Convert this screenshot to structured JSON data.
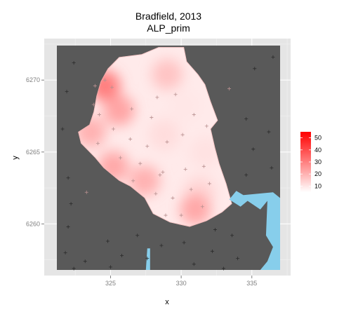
{
  "chart_data": {
    "type": "heatmap",
    "title": "Bradfield, 2013",
    "subtitle": "ALP_prim",
    "xlabel": "x",
    "ylabel": "y",
    "xlim": [
      321.2,
      337.0
    ],
    "ylim": [
      6256.8,
      6272.4
    ],
    "x_ticks": [
      325,
      330,
      335
    ],
    "y_ticks": [
      6260,
      6265,
      6270
    ],
    "grid": true,
    "legend": {
      "position": "right",
      "title": "",
      "ticks": [
        10,
        20,
        30,
        40,
        50
      ],
      "range": [
        5,
        55
      ],
      "low_color": "#ffffff",
      "high_color": "#ff0000"
    },
    "background_color": "#595959",
    "water_color": "#87ceeb",
    "electorate_outline": [
      [
        324.8,
        6270.8
      ],
      [
        325.6,
        6271.6
      ],
      [
        327.2,
        6271.8
      ],
      [
        328.4,
        6272.3
      ],
      [
        330.2,
        6272.3
      ],
      [
        330.4,
        6271.3
      ],
      [
        331.2,
        6270.4
      ],
      [
        331.7,
        6269.7
      ],
      [
        332.1,
        6268.5
      ],
      [
        332.6,
        6267.2
      ],
      [
        332.1,
        6266.6
      ],
      [
        332.4,
        6265.3
      ],
      [
        332.7,
        6264.2
      ],
      [
        333.2,
        6262.8
      ],
      [
        333.6,
        6261.4
      ],
      [
        332.9,
        6260.8
      ],
      [
        331.8,
        6260.2
      ],
      [
        330.6,
        6259.8
      ],
      [
        329.2,
        6260.1
      ],
      [
        328.0,
        6260.7
      ],
      [
        327.4,
        6261.8
      ],
      [
        326.4,
        6262.6
      ],
      [
        325.6,
        6263.0
      ],
      [
        324.5,
        6263.9
      ],
      [
        323.9,
        6264.6
      ],
      [
        322.9,
        6265.6
      ],
      [
        322.7,
        6266.4
      ],
      [
        323.5,
        6266.9
      ],
      [
        323.8,
        6267.8
      ],
      [
        324.0,
        6268.9
      ],
      [
        324.3,
        6269.9
      ]
    ],
    "peaks": [
      {
        "x": 324.6,
        "y": 6269.6,
        "value": 34
      },
      {
        "x": 325.6,
        "y": 6267.9,
        "value": 25
      },
      {
        "x": 323.6,
        "y": 6266.4,
        "value": 22
      },
      {
        "x": 330.2,
        "y": 6268.2,
        "value": 10
      },
      {
        "x": 328.8,
        "y": 6266.2,
        "value": 12
      },
      {
        "x": 331.3,
        "y": 6262.2,
        "value": 14
      },
      {
        "x": 327.4,
        "y": 6263.0,
        "value": 22
      },
      {
        "x": 325.2,
        "y": 6264.0,
        "value": 24
      },
      {
        "x": 329.0,
        "y": 6270.4,
        "value": 18
      },
      {
        "x": 331.7,
        "y": 6265.0,
        "value": 11
      },
      {
        "x": 331.0,
        "y": 6261.0,
        "value": 24
      }
    ],
    "water_regions": [
      [
        [
          333.4,
          6261.7
        ],
        [
          334.2,
          6261.2
        ],
        [
          334.7,
          6261.6
        ],
        [
          335.6,
          6261.0
        ],
        [
          336.1,
          6261.6
        ],
        [
          336.0,
          6259.2
        ],
        [
          336.5,
          6258.4
        ],
        [
          336.1,
          6257.4
        ],
        [
          335.6,
          6256.8
        ],
        [
          337.0,
          6256.8
        ],
        [
          337.0,
          6261.8
        ],
        [
          336.5,
          6262.2
        ],
        [
          334.4,
          6262.0
        ],
        [
          333.9,
          6262.3
        ]
      ],
      [
        [
          327.6,
          6258.3
        ],
        [
          327.8,
          6258.3
        ],
        [
          327.8,
          6256.8
        ],
        [
          327.5,
          6256.8
        ]
      ]
    ],
    "polling_places": [
      [
        323.8,
        6268.3
      ],
      [
        324.2,
        6267.6
      ],
      [
        325.1,
        6269.5
      ],
      [
        326.5,
        6268.0
      ],
      [
        327.9,
        6267.4
      ],
      [
        328.3,
        6268.8
      ],
      [
        329.6,
        6269.0
      ],
      [
        330.9,
        6267.6
      ],
      [
        331.8,
        6266.8
      ],
      [
        330.1,
        6266.2
      ],
      [
        329.0,
        6265.7
      ],
      [
        327.6,
        6265.4
      ],
      [
        326.4,
        6265.9
      ],
      [
        325.2,
        6266.6
      ],
      [
        324.1,
        6265.6
      ],
      [
        325.7,
        6264.6
      ],
      [
        327.1,
        6264.2
      ],
      [
        328.5,
        6263.4
      ],
      [
        330.3,
        6263.8
      ],
      [
        331.6,
        6264.0
      ],
      [
        332.0,
        6262.8
      ],
      [
        330.7,
        6262.4
      ],
      [
        329.4,
        6261.8
      ],
      [
        328.2,
        6262.1
      ],
      [
        326.6,
        6263.0
      ],
      [
        331.5,
        6261.2
      ],
      [
        330.0,
        6260.6
      ],
      [
        328.9,
        6260.6
      ],
      [
        322.2,
        6261.4
      ],
      [
        322.0,
        6259.8
      ],
      [
        321.8,
        6258.0
      ],
      [
        323.2,
        6257.4
      ],
      [
        324.8,
        6258.8
      ],
      [
        325.8,
        6257.8
      ],
      [
        326.9,
        6259.2
      ],
      [
        327.6,
        6257.6
      ],
      [
        328.6,
        6258.5
      ],
      [
        330.2,
        6258.7
      ],
      [
        330.9,
        6257.2
      ],
      [
        332.2,
        6258.1
      ],
      [
        333.6,
        6259.2
      ],
      [
        334.0,
        6257.6
      ],
      [
        333.0,
        6256.9
      ],
      [
        321.6,
        6266.6
      ],
      [
        321.9,
        6269.2
      ],
      [
        322.4,
        6271.2
      ],
      [
        322.0,
        6263.2
      ],
      [
        323.3,
        6262.2
      ],
      [
        333.4,
        6269.4
      ],
      [
        334.6,
        6267.3
      ],
      [
        335.1,
        6265.2
      ],
      [
        336.2,
        6266.4
      ],
      [
        334.6,
        6263.4
      ],
      [
        336.4,
        6263.9
      ],
      [
        335.2,
        6270.8
      ],
      [
        336.5,
        6271.6
      ],
      [
        323.9,
        6269.6
      ],
      [
        324.6,
        6270.0
      ],
      [
        328.7,
        6263.6
      ],
      [
        332.4,
        6259.6
      ],
      [
        322.4,
        6256.9
      ],
      [
        325.0,
        6257.0
      ]
    ]
  }
}
